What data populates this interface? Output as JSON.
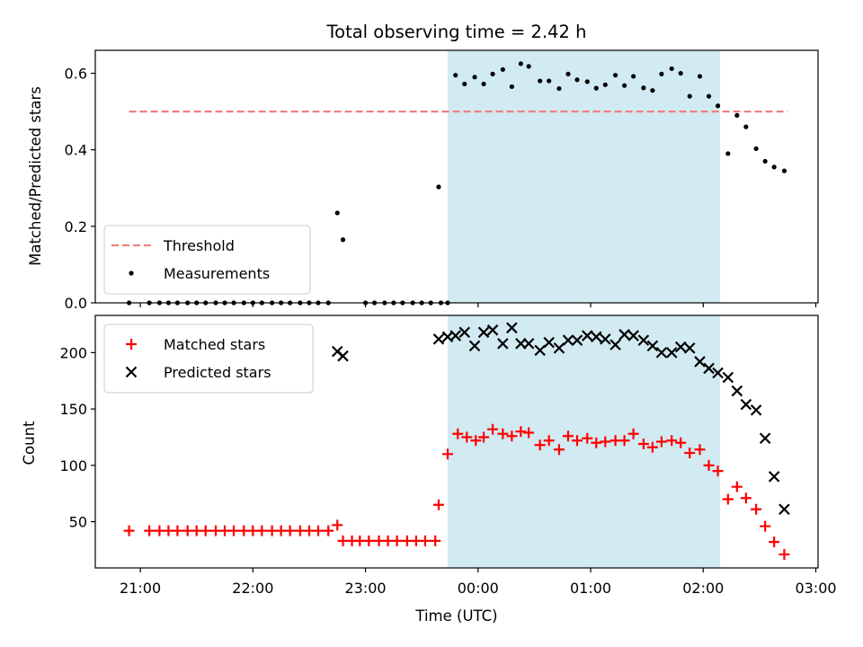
{
  "chart_data": [
    {
      "type": "scatter",
      "title": "Total observing time = 2.42 h",
      "xlabel": "",
      "ylabel": "Matched/Predicted stars",
      "x_unit": "UTC time (hours after 00:00, negative = previous day)",
      "xlim": [
        -3.4,
        3.02
      ],
      "ylim": [
        0,
        0.66
      ],
      "yticks": [
        0.0,
        0.2,
        0.4,
        0.6
      ],
      "ytick_labels": [
        "0.0",
        "0.2",
        "0.4",
        "0.6"
      ],
      "highlight_span": [
        -0.27,
        2.15
      ],
      "threshold": {
        "name": "Threshold",
        "y": 0.5,
        "x_range": [
          -3.1,
          2.75
        ],
        "color": "#f08080"
      },
      "legend": {
        "position": "lower-left",
        "entries": [
          "Threshold",
          "Measurements"
        ]
      },
      "series": [
        {
          "name": "Measurements",
          "color": "#000000",
          "x": [
            -3.1,
            -2.92,
            -2.83,
            -2.75,
            -2.67,
            -2.58,
            -2.5,
            -2.42,
            -2.33,
            -2.25,
            -2.17,
            -2.08,
            -2.0,
            -1.92,
            -1.83,
            -1.75,
            -1.67,
            -1.58,
            -1.5,
            -1.42,
            -1.33,
            -1.25,
            -1.2,
            -1.0,
            -0.92,
            -0.83,
            -0.75,
            -0.67,
            -0.58,
            -0.5,
            -0.42,
            -0.33,
            -0.27,
            -0.35,
            -0.2,
            -0.12,
            -0.03,
            0.05,
            0.13,
            0.22,
            0.3,
            0.38,
            0.45,
            0.55,
            0.63,
            0.72,
            0.8,
            0.88,
            0.97,
            1.05,
            1.13,
            1.22,
            1.3,
            1.38,
            1.47,
            1.55,
            1.63,
            1.72,
            1.8,
            1.88,
            1.97,
            2.05,
            2.13,
            2.22,
            2.3,
            2.38,
            2.47,
            2.55,
            2.63,
            2.72
          ],
          "y": [
            0.0,
            0.0,
            0.0,
            0.0,
            0.0,
            0.0,
            0.0,
            0.0,
            0.0,
            0.0,
            0.0,
            0.0,
            0.0,
            0.0,
            0.0,
            0.0,
            0.0,
            0.0,
            0.0,
            0.0,
            0.0,
            0.235,
            0.165,
            0.0,
            0.0,
            0.0,
            0.0,
            0.0,
            0.0,
            0.0,
            0.0,
            0.0,
            0.0,
            0.303,
            0.595,
            0.572,
            0.59,
            0.572,
            0.598,
            0.61,
            0.565,
            0.625,
            0.618,
            0.58,
            0.58,
            0.56,
            0.598,
            0.583,
            0.578,
            0.561,
            0.57,
            0.595,
            0.568,
            0.592,
            0.562,
            0.555,
            0.598,
            0.612,
            0.6,
            0.54,
            0.592,
            0.54,
            0.515,
            0.39,
            0.49,
            0.46,
            0.403,
            0.37,
            0.355,
            0.345
          ]
        }
      ]
    },
    {
      "type": "scatter",
      "title": "",
      "xlabel": "Time (UTC)",
      "ylabel": "Count",
      "xlim": [
        -3.4,
        3.02
      ],
      "ylim": [
        9,
        233
      ],
      "xticks": [
        -3,
        -2,
        -1,
        0,
        1,
        2,
        3
      ],
      "xtick_labels": [
        "21:00",
        "22:00",
        "23:00",
        "00:00",
        "01:00",
        "02:00",
        "03:00"
      ],
      "yticks": [
        50,
        100,
        150,
        200
      ],
      "ytick_labels": [
        "50",
        "100",
        "150",
        "200"
      ],
      "highlight_span": [
        -0.27,
        2.15
      ],
      "legend": {
        "position": "upper-left",
        "entries": [
          "Matched stars",
          "Predicted stars"
        ]
      },
      "series": [
        {
          "name": "Matched stars",
          "marker": "plus",
          "color": "#ff0000",
          "x": [
            -3.1,
            -2.92,
            -2.83,
            -2.75,
            -2.67,
            -2.58,
            -2.5,
            -2.42,
            -2.33,
            -2.25,
            -2.17,
            -2.08,
            -2.0,
            -1.92,
            -1.83,
            -1.75,
            -1.67,
            -1.58,
            -1.5,
            -1.42,
            -1.33,
            -1.25,
            -1.2,
            -1.12,
            -1.05,
            -0.97,
            -0.88,
            -0.8,
            -0.72,
            -0.63,
            -0.55,
            -0.47,
            -0.38,
            -0.35,
            -0.27,
            -0.18,
            -0.1,
            -0.02,
            0.05,
            0.13,
            0.22,
            0.3,
            0.38,
            0.45,
            0.55,
            0.63,
            0.72,
            0.8,
            0.88,
            0.97,
            1.05,
            1.13,
            1.22,
            1.3,
            1.38,
            1.47,
            1.55,
            1.63,
            1.72,
            1.8,
            1.88,
            1.97,
            2.05,
            2.13,
            2.22,
            2.3,
            2.38,
            2.47,
            2.55,
            2.63,
            2.72
          ],
          "y": [
            42,
            42,
            42,
            42,
            42,
            42,
            42,
            42,
            42,
            42,
            42,
            42,
            42,
            42,
            42,
            42,
            42,
            42,
            42,
            42,
            42,
            47,
            33,
            33,
            33,
            33,
            33,
            33,
            33,
            33,
            33,
            33,
            33,
            65,
            110,
            128,
            125,
            122,
            125,
            132,
            128,
            126,
            130,
            129,
            118,
            122,
            114,
            126,
            122,
            124,
            120,
            121,
            122,
            122,
            128,
            119,
            116,
            121,
            122,
            120,
            111,
            114,
            100,
            95,
            70,
            81,
            71,
            61,
            46,
            32,
            21
          ]
        },
        {
          "name": "Predicted stars",
          "marker": "x",
          "color": "#000000",
          "x": [
            -1.25,
            -1.2,
            -0.35,
            -0.27,
            -0.2,
            -0.12,
            -0.03,
            0.05,
            0.13,
            0.22,
            0.3,
            0.38,
            0.45,
            0.55,
            0.63,
            0.72,
            0.8,
            0.88,
            0.97,
            1.05,
            1.13,
            1.22,
            1.3,
            1.38,
            1.47,
            1.55,
            1.63,
            1.72,
            1.8,
            1.88,
            1.97,
            2.05,
            2.13,
            2.22,
            2.3,
            2.38,
            2.47,
            2.55,
            2.63,
            2.72
          ],
          "y": [
            201,
            197,
            212,
            214,
            215,
            218,
            206,
            218,
            220,
            208,
            222,
            208,
            208,
            202,
            209,
            204,
            211,
            211,
            215,
            214,
            212,
            207,
            216,
            215,
            211,
            206,
            200,
            200,
            205,
            204,
            192,
            186,
            182,
            178,
            166,
            154,
            149,
            124,
            90,
            61
          ]
        }
      ]
    }
  ]
}
